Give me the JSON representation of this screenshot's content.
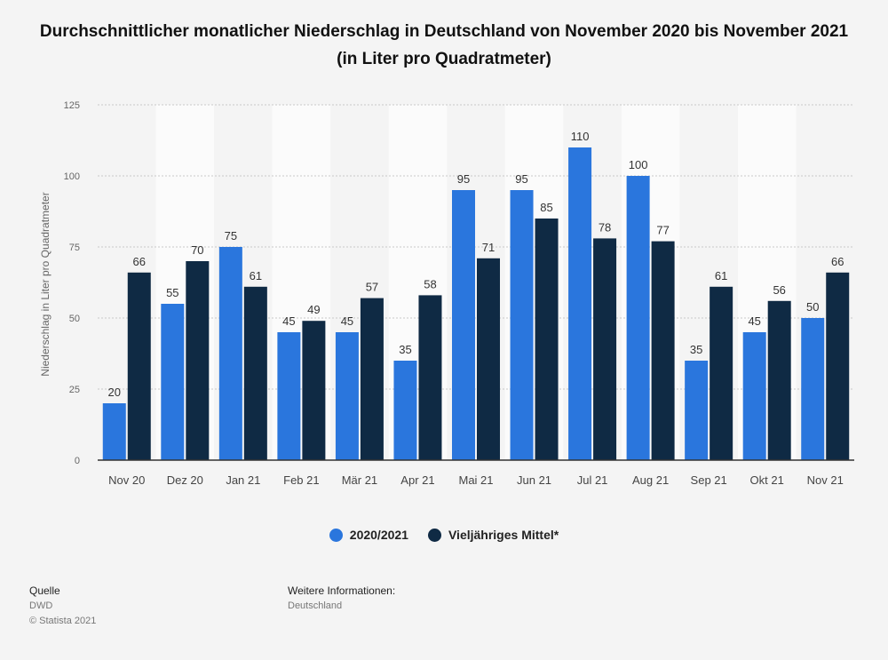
{
  "chart_data": {
    "type": "bar",
    "title": "Durchschnittlicher monatlicher Niederschlag in Deutschland von November 2020 bis November 2021 (in Liter pro Quadratmeter)",
    "ylabel": "Niederschlag in Liter pro Quadratmeter",
    "xlabel": "",
    "ylim": [
      0,
      125
    ],
    "yticks": [
      0,
      25,
      50,
      75,
      100,
      125
    ],
    "grid": true,
    "legend_position": "bottom-center",
    "categories": [
      "Nov 20",
      "Dez 20",
      "Jan 21",
      "Feb 21",
      "Mär 21",
      "Apr 21",
      "Mai 21",
      "Jun 21",
      "Jul 21",
      "Aug 21",
      "Sep 21",
      "Okt 21",
      "Nov 21"
    ],
    "series": [
      {
        "name": "2020/2021",
        "color": "#2a76dd",
        "values": [
          20,
          55,
          75,
          45,
          45,
          35,
          95,
          95,
          110,
          100,
          35,
          45,
          50
        ]
      },
      {
        "name": "Vieljähriges Mittel*",
        "color": "#0f2a44",
        "values": [
          66,
          70,
          61,
          49,
          57,
          58,
          71,
          85,
          78,
          77,
          61,
          56,
          66
        ]
      }
    ]
  },
  "footer": {
    "source_heading": "Quelle",
    "source_name": "DWD",
    "copyright": "© Statista 2021",
    "info_heading": "Weitere Informationen:",
    "info_text": "Deutschland"
  }
}
